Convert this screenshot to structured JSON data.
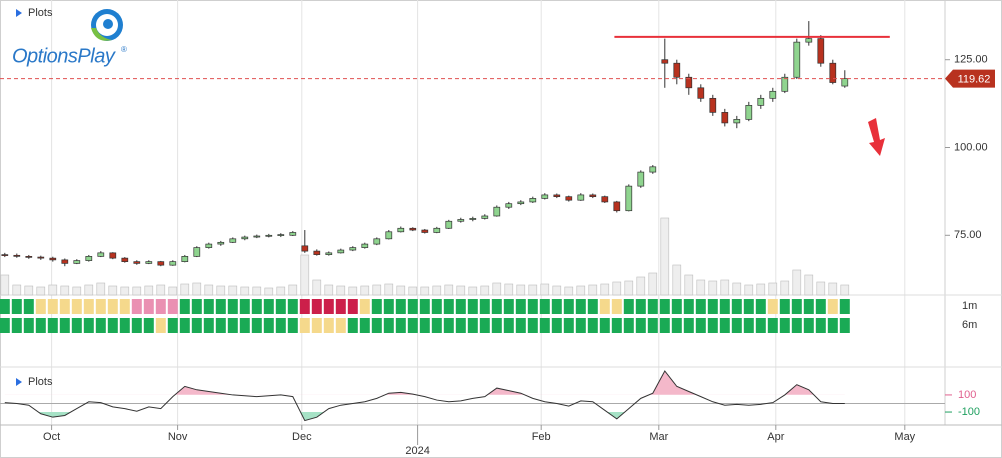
{
  "chart_data": {
    "type": "candlestick",
    "title": "Plots",
    "logo_text": "OptionsPlay",
    "logo_mark": "®",
    "xlim": [
      -0.4,
      78.35
    ],
    "xticks": [
      {
        "value": 3.9,
        "label": "Oct"
      },
      {
        "value": 14.4,
        "label": "Nov"
      },
      {
        "value": 24.75,
        "label": "Dec"
      },
      {
        "value": 44.7,
        "label": "Feb"
      },
      {
        "value": 54.5,
        "label": "Mar"
      },
      {
        "value": 64.25,
        "label": "Apr"
      },
      {
        "value": 75,
        "label": "May"
      }
    ],
    "year_ticks": [
      {
        "value": 34.4,
        "label": "2024"
      }
    ],
    "xgrid": true,
    "ylim": [
      58,
      142
    ],
    "yticks": [
      {
        "value": 75,
        "label": "75.00"
      },
      {
        "value": 100,
        "label": "100.00"
      },
      {
        "value": 125,
        "label": "125.00"
      }
    ],
    "up_color": "#8fd48f",
    "down_color": "#b8321f",
    "ohlc": [
      [
        69.5,
        70,
        68.8,
        69.3
      ],
      [
        69.3,
        69.8,
        68.6,
        69
      ],
      [
        69,
        69.4,
        68.3,
        68.8
      ],
      [
        68.8,
        69.2,
        68,
        68.5
      ],
      [
        68.5,
        68.9,
        67.5,
        68
      ],
      [
        68,
        68.4,
        66.2,
        67
      ],
      [
        67,
        68.2,
        66.8,
        67.8
      ],
      [
        67.8,
        69.4,
        67.5,
        69
      ],
      [
        69,
        70.5,
        68.8,
        70
      ],
      [
        70,
        70.2,
        68.2,
        68.5
      ],
      [
        68.5,
        68.8,
        67.2,
        67.5
      ],
      [
        67.5,
        67.9,
        66.6,
        67
      ],
      [
        67,
        67.9,
        66.8,
        67.5
      ],
      [
        67.5,
        67.7,
        66.2,
        66.5
      ],
      [
        66.5,
        67.9,
        66.3,
        67.5
      ],
      [
        67.5,
        69.4,
        67.3,
        69
      ],
      [
        69,
        71.9,
        68.8,
        71.5
      ],
      [
        71.5,
        72.9,
        71.2,
        72.5
      ],
      [
        72.5,
        73.4,
        72,
        73
      ],
      [
        73,
        74.4,
        72.8,
        74
      ],
      [
        74,
        74.9,
        73.6,
        74.5
      ],
      [
        74.5,
        75.2,
        74.2,
        74.8
      ],
      [
        74.8,
        75.4,
        74.4,
        75
      ],
      [
        75,
        75.6,
        74.5,
        75.2
      ],
      [
        75,
        76.2,
        74.8,
        75.8
      ],
      [
        72,
        76.5,
        70,
        70.5
      ],
      [
        70.5,
        71,
        69.2,
        69.5
      ],
      [
        69.5,
        70.4,
        69.2,
        70
      ],
      [
        70,
        71.2,
        69.8,
        70.8
      ],
      [
        70.8,
        71.9,
        70.5,
        71.5
      ],
      [
        71.5,
        72.9,
        71.2,
        72.5
      ],
      [
        72.5,
        74.4,
        72.2,
        74
      ],
      [
        74,
        76.5,
        73.8,
        76
      ],
      [
        76,
        77.5,
        75.8,
        77
      ],
      [
        77,
        77.3,
        76.2,
        76.5
      ],
      [
        76.5,
        76.8,
        75.5,
        75.8
      ],
      [
        75.8,
        77.4,
        75.6,
        77
      ],
      [
        77,
        79.4,
        76.8,
        79
      ],
      [
        79,
        80,
        78.6,
        79.5
      ],
      [
        79.5,
        80.3,
        79,
        79.8
      ],
      [
        79.8,
        81,
        79.5,
        80.5
      ],
      [
        80.5,
        83.5,
        80.3,
        83
      ],
      [
        83,
        84.5,
        82.5,
        84
      ],
      [
        84,
        85,
        83.6,
        84.5
      ],
      [
        84.5,
        86,
        84.2,
        85.5
      ],
      [
        85.5,
        87,
        85.2,
        86.5
      ],
      [
        86.5,
        86.9,
        85.6,
        86
      ],
      [
        86,
        86.3,
        84.6,
        85
      ],
      [
        85,
        87,
        84.8,
        86.5
      ],
      [
        86.5,
        86.9,
        85.6,
        86
      ],
      [
        86,
        86.3,
        84.2,
        84.5
      ],
      [
        84.5,
        84.8,
        81.5,
        82
      ],
      [
        82,
        89.5,
        81.8,
        89
      ],
      [
        89,
        93.5,
        88.5,
        93
      ],
      [
        93,
        95,
        92.5,
        94.5
      ],
      [
        125,
        131,
        117,
        124
      ],
      [
        124,
        125,
        118,
        120
      ],
      [
        120,
        121,
        115,
        117
      ],
      [
        117,
        118,
        113,
        114
      ],
      [
        114,
        115,
        109,
        110
      ],
      [
        110,
        111,
        106,
        107
      ],
      [
        107,
        109,
        105.5,
        108
      ],
      [
        108,
        113,
        107.5,
        112
      ],
      [
        112,
        115,
        111,
        114
      ],
      [
        114,
        117,
        113,
        116
      ],
      [
        116,
        121,
        115.5,
        120
      ],
      [
        120,
        131,
        119.5,
        130
      ],
      [
        130,
        136,
        129,
        131
      ],
      [
        131,
        132,
        123,
        124
      ],
      [
        124,
        125,
        118,
        118.5
      ],
      [
        117.5,
        122,
        117,
        119.62
      ]
    ],
    "price_line_color": "#e05050",
    "resistance": {
      "value": 131.5,
      "from": 50.8,
      "to": 73.75,
      "color": "#e8303a"
    },
    "volume": {
      "ylim": [
        0,
        100
      ],
      "color": "#eeeeee",
      "values": [
        20,
        10,
        9,
        8,
        10,
        9,
        8,
        10,
        12,
        9,
        8,
        8,
        9,
        10,
        8,
        11,
        12,
        10,
        9,
        9,
        8,
        8,
        7,
        8,
        10,
        40,
        15,
        10,
        9,
        8,
        9,
        10,
        11,
        9,
        8,
        8,
        9,
        10,
        9,
        8,
        9,
        12,
        11,
        10,
        10,
        11,
        9,
        8,
        9,
        10,
        11,
        13,
        14,
        18,
        22,
        77,
        30,
        20,
        15,
        14,
        15,
        12,
        10,
        11,
        12,
        14,
        25,
        20,
        13,
        12,
        10
      ]
    },
    "heatmap": [
      {
        "name": "1m",
        "runs": [
          [
            3,
            "#1aaa55"
          ],
          [
            8,
            "#f5d98c"
          ],
          [
            4,
            "#ea90b2"
          ],
          [
            10,
            "#1aaa55"
          ],
          [
            5,
            "#cc1f4a"
          ],
          [
            1,
            "#f5d98c"
          ],
          [
            19,
            "#1aaa55"
          ],
          [
            2,
            "#f5d98c"
          ],
          [
            12,
            "#1aaa55"
          ],
          [
            1,
            "#f5d98c"
          ],
          [
            4,
            "#1aaa55"
          ],
          [
            1,
            "#f5d98c"
          ],
          [
            1,
            "#1aaa55"
          ]
        ]
      },
      {
        "name": "6m",
        "runs": [
          [
            13,
            "#1aaa55"
          ],
          [
            1,
            "#f5d98c"
          ],
          [
            11,
            "#1aaa55"
          ],
          [
            4,
            "#f5d98c"
          ],
          [
            42,
            "#1aaa55"
          ]
        ]
      }
    ],
    "indicator": {
      "title": "Plots",
      "ylim": [
        -310,
        450
      ],
      "yticks": [
        100,
        -100
      ],
      "tick_colors": [
        "#e0608e",
        "#1fa060"
      ],
      "color": "#333333",
      "upper_fill": "#f4b8ca",
      "lower_fill": "#a6e2c6",
      "values": [
        10,
        0,
        -20,
        -120,
        -160,
        -140,
        -60,
        20,
        10,
        -40,
        -60,
        -90,
        -40,
        -60,
        80,
        200,
        160,
        140,
        120,
        100,
        90,
        80,
        90,
        100,
        80,
        -200,
        -160,
        -60,
        -20,
        0,
        20,
        60,
        120,
        130,
        110,
        80,
        40,
        20,
        30,
        60,
        80,
        180,
        150,
        120,
        60,
        20,
        0,
        -30,
        30,
        20,
        -80,
        -180,
        -60,
        60,
        120,
        380,
        200,
        140,
        80,
        20,
        -20,
        -10,
        -20,
        -10,
        10,
        100,
        220,
        160,
        20,
        0,
        0
      ]
    }
  }
}
